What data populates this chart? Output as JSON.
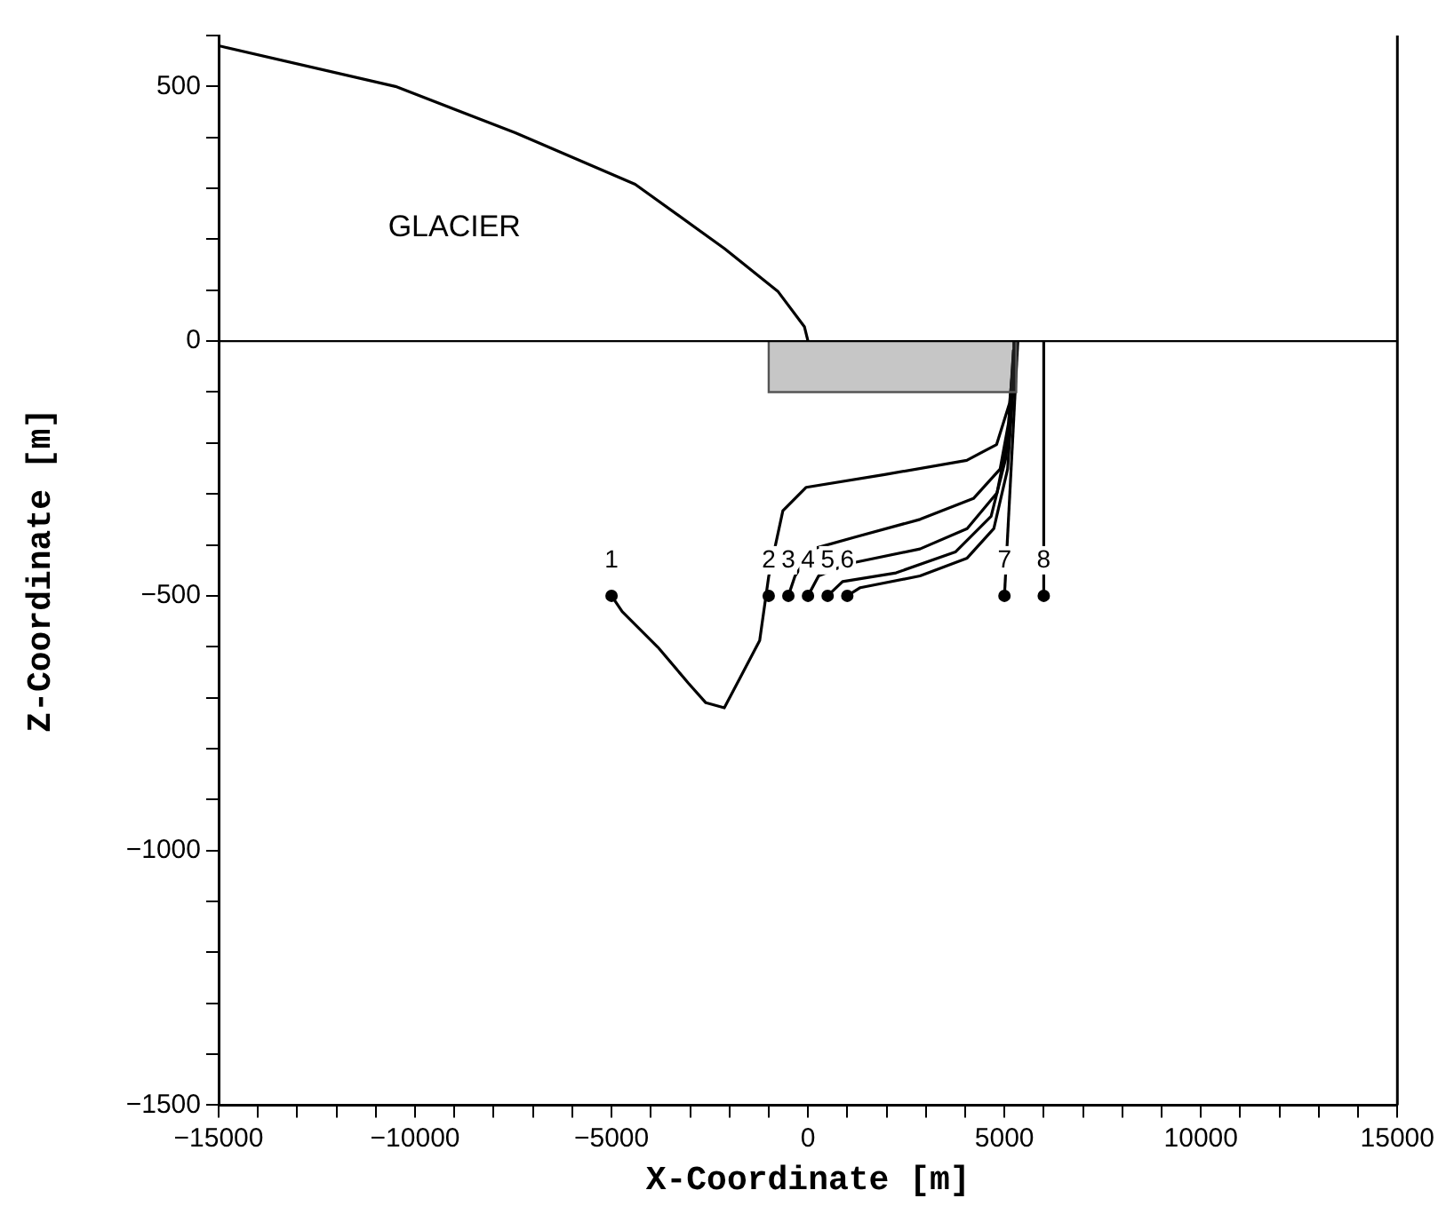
{
  "chart_data": {
    "type": "line",
    "xlabel": "X-Coordinate [m]",
    "ylabel": "Z-Coordinate [m]",
    "xlim": [
      -15000,
      15000
    ],
    "ylim": [
      -1500,
      600
    ],
    "xticks": [
      -15000,
      {
        "value": -14000,
        "label": null
      },
      {
        "value": -13000,
        "label": null
      },
      {
        "value": -12000,
        "label": null
      },
      {
        "value": -11000,
        "label": null
      },
      -10000,
      {
        "value": -9000,
        "label": null
      },
      {
        "value": -8000,
        "label": null
      },
      {
        "value": -7000,
        "label": null
      },
      {
        "value": -6000,
        "label": null
      },
      -5000,
      {
        "value": -4000,
        "label": null
      },
      {
        "value": -3000,
        "label": null
      },
      {
        "value": -2000,
        "label": null
      },
      {
        "value": -1000,
        "label": null
      },
      0,
      {
        "value": 1000,
        "label": null
      },
      {
        "value": 2000,
        "label": null
      },
      {
        "value": 3000,
        "label": null
      },
      {
        "value": 4000,
        "label": null
      },
      5000,
      {
        "value": 6000,
        "label": null
      },
      {
        "value": 7000,
        "label": null
      },
      {
        "value": 8000,
        "label": null
      },
      {
        "value": 9000,
        "label": null
      },
      10000,
      {
        "value": 11000,
        "label": null
      },
      {
        "value": 12000,
        "label": null
      },
      {
        "value": 13000,
        "label": null
      },
      {
        "value": 14000,
        "label": null
      },
      15000
    ],
    "yticks": [
      -1500,
      {
        "value": -1400,
        "label": null
      },
      {
        "value": -1300,
        "label": null
      },
      {
        "value": -1200,
        "label": null
      },
      {
        "value": -1100,
        "label": null
      },
      -1000,
      {
        "value": -900,
        "label": null
      },
      {
        "value": -800,
        "label": null
      },
      {
        "value": -700,
        "label": null
      },
      {
        "value": -600,
        "label": null
      },
      -500,
      {
        "value": -400,
        "label": null
      },
      {
        "value": -300,
        "label": null
      },
      {
        "value": -200,
        "label": null
      },
      {
        "value": -100,
        "label": null
      },
      0,
      {
        "value": 100,
        "label": null
      },
      {
        "value": 200,
        "label": null
      },
      {
        "value": 300,
        "label": null
      },
      {
        "value": 400,
        "label": null
      },
      500,
      {
        "value": 600,
        "label": null
      }
    ],
    "grid": false,
    "legend": false,
    "ref_lines": [
      {
        "axis": "y",
        "value": 0,
        "color": "#000000"
      }
    ],
    "series": [
      {
        "color": "#000000",
        "x": [
          -15000,
          -10500,
          -7450,
          -4400,
          -2130,
          -770,
          -90,
          0
        ],
        "values": [
          580,
          500,
          409,
          308,
          182,
          98,
          28,
          0
        ]
      },
      {
        "type": "area",
        "color": "#555555",
        "x": [
          -1000,
          -1000,
          5300,
          5300
        ],
        "values": [
          0,
          -100,
          -100,
          0
        ]
      },
      {
        "type": "line",
        "color": "#000000",
        "x": [
          -5000,
          -4730,
          -3820,
          -3050,
          -2600,
          -2130,
          -1230,
          -1000,
          -640,
          -45,
          1950,
          4040,
          4800,
          5130,
          5270,
          5280
        ],
        "values": [
          -500,
          -531,
          -601,
          -671,
          -710,
          -720,
          -588,
          -462,
          -333,
          -287,
          -262,
          -234,
          -203,
          -122,
          -7,
          0
        ]
      },
      {
        "type": "line",
        "color": "#000000",
        "x": [
          -500,
          -330,
          120,
          1180,
          2850,
          4210,
          4890,
          5110,
          5230,
          5240
        ],
        "values": [
          -500,
          -461,
          -408,
          -385,
          -350,
          -309,
          -251,
          -158,
          -18,
          0
        ]
      },
      {
        "type": "line",
        "color": "#000000",
        "x": [
          0,
          270,
          1030,
          2850,
          4050,
          4810,
          5110,
          5230,
          5250
        ],
        "values": [
          -500,
          -461,
          -437,
          -408,
          -368,
          -298,
          -181,
          -18,
          0
        ]
      },
      {
        "type": "line",
        "color": "#000000",
        "x": [
          500,
          880,
          2240,
          3750,
          4660,
          5040,
          5230,
          5260
        ],
        "values": [
          -500,
          -472,
          -455,
          -414,
          -344,
          -228,
          -41,
          0
        ]
      },
      {
        "type": "line",
        "color": "#000000",
        "x": [
          1000,
          1330,
          2850,
          4050,
          4730,
          5080,
          5270,
          5280
        ],
        "values": [
          -500,
          -484,
          -461,
          -426,
          -368,
          -251,
          -41,
          0
        ]
      },
      {
        "type": "line",
        "color": "#000000",
        "x": [
          5000,
          5340
        ],
        "values": [
          -500,
          0
        ]
      },
      {
        "type": "line",
        "color": "#000000",
        "x": [
          6000,
          6000
        ],
        "values": [
          -500,
          0
        ]
      },
      {
        "type": "scatter",
        "color": "#000000",
        "marker": "circle",
        "x": [
          -5000,
          -1000,
          -500,
          0,
          500,
          1000,
          5000,
          6000
        ],
        "values": [
          -500,
          -500,
          -500,
          -500,
          -500,
          -500,
          -500,
          -500
        ]
      }
    ],
    "annotations": [
      "GLACIER",
      {
        "text": "1",
        "x": -5000,
        "y": -500
      },
      {
        "text": "2",
        "x": -1000,
        "y": -500
      },
      {
        "text": "3",
        "x": -500,
        "y": -500
      },
      {
        "text": "4",
        "x": 0,
        "y": -500
      },
      {
        "text": "5",
        "x": 500,
        "y": -500
      },
      {
        "text": "6",
        "x": 1000,
        "y": -500
      },
      {
        "text": "7",
        "x": 5000,
        "y": -500
      },
      {
        "text": "8",
        "x": 6000,
        "y": -500
      }
    ]
  }
}
